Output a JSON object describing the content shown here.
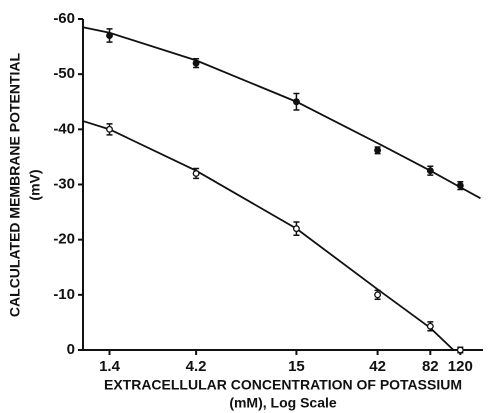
{
  "chart_data": {
    "type": "scatter",
    "xlabel": [
      "EXTRACELLULAR CONCENTRATION OF POTASSIUM",
      "(mM), Log Scale"
    ],
    "ylabel": [
      "CALCULATED MEMBRANE POTENTIAL",
      "(mV)"
    ],
    "x": [
      1.4,
      4.2,
      15,
      42,
      82,
      120
    ],
    "series": [
      {
        "marker": "filled",
        "color": "#111111",
        "values": [
          -57,
          -52,
          -45,
          -36.2,
          -32.5,
          -29.8
        ],
        "errors": [
          1.2,
          0.8,
          1.5,
          0.6,
          0.8,
          0.7
        ]
      },
      {
        "marker": "open",
        "color": "#111111",
        "values": [
          -40,
          -32,
          -22,
          -10,
          -4.3,
          0
        ],
        "errors": [
          1.0,
          0.9,
          1.2,
          0.8,
          0.8,
          0.5
        ]
      }
    ],
    "curves": [
      {
        "x": [
          1,
          1.4,
          4.2,
          15,
          42,
          82,
          120,
          155
        ],
        "values": [
          -58.5,
          -57.5,
          -52.5,
          -45,
          -37.5,
          -32.5,
          -29.5,
          -27.5
        ]
      },
      {
        "x": [
          1,
          1.4,
          4.2,
          15,
          42,
          82,
          110
        ],
        "values": [
          -41.5,
          -40,
          -32.5,
          -22,
          -11,
          -4,
          0
        ]
      }
    ],
    "xscale": "log",
    "xlim": [
      1,
      160
    ],
    "xticks": [
      1.4,
      4.2,
      15,
      42,
      82,
      120
    ],
    "ylim": [
      0,
      -60
    ],
    "yticks": [
      0,
      -10,
      -20,
      -30,
      -40,
      -50,
      -60
    ]
  }
}
